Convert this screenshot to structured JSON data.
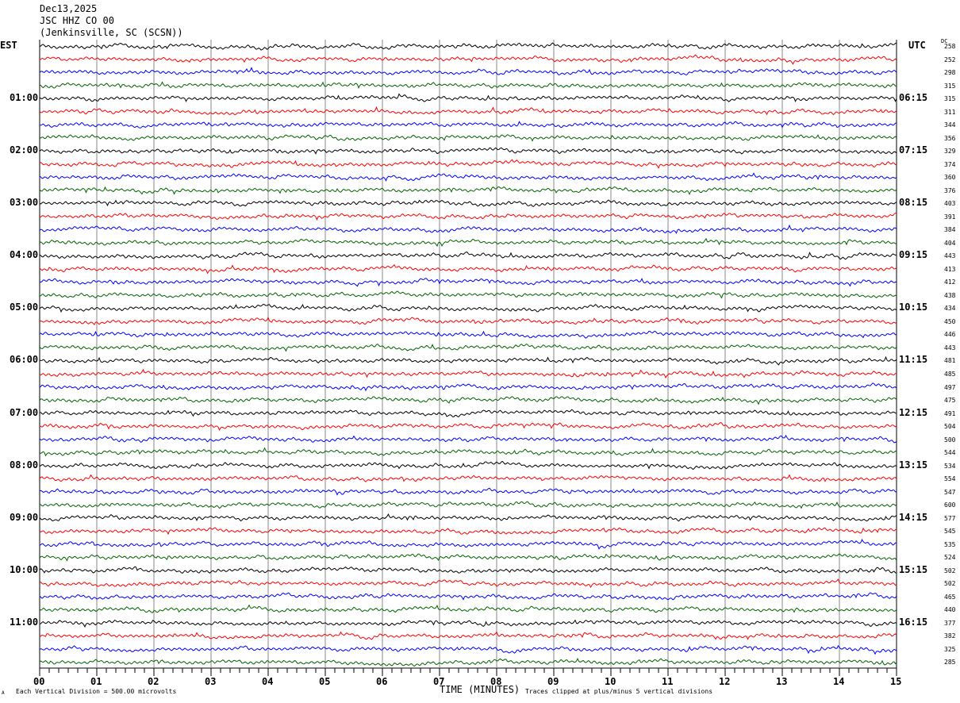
{
  "header": {
    "date": "Dec13,2025",
    "station": "JSC HHZ CO 00",
    "location": "(Jenkinsville, SC (SCSN))"
  },
  "left_axis_label": "EST",
  "right_axis_label": "UTC",
  "dc_label": "DC",
  "chart_data": {
    "type": "line",
    "title": "",
    "xlabel": "TIME (MINUTES)",
    "xlim": [
      0,
      15
    ],
    "x_ticks": [
      "00",
      "01",
      "02",
      "03",
      "04",
      "05",
      "06",
      "07",
      "08",
      "09",
      "10",
      "11",
      "12",
      "13",
      "14",
      "15"
    ],
    "left_time_labels": [
      "01:00",
      "02:00",
      "03:00",
      "04:00",
      "05:00",
      "06:00",
      "07:00",
      "08:00",
      "09:00",
      "10:00",
      "11:00"
    ],
    "right_time_labels": [
      "06:15",
      "07:15",
      "08:15",
      "09:15",
      "10:15",
      "11:15",
      "12:15",
      "13:15",
      "14:15",
      "15:15",
      "16:15"
    ],
    "trace_colors": [
      "#000000",
      "#ff0000",
      "#0000ff",
      "#006400"
    ],
    "trace_count": 48,
    "dc_offsets": [
      258,
      252,
      298,
      315,
      315,
      311,
      344,
      356,
      329,
      374,
      360,
      376,
      403,
      391,
      384,
      404,
      443,
      413,
      412,
      438,
      434,
      450,
      446,
      443,
      481,
      485,
      497,
      475,
      491,
      504,
      500,
      544,
      534,
      554,
      547,
      600,
      577,
      545,
      535,
      524,
      502,
      502,
      465,
      440,
      377,
      382,
      325,
      285
    ],
    "grid": true
  },
  "footer": {
    "scale_note": "Each Vertical Division =  500.00 microvolts",
    "clip_note": "Traces clipped at plus/minus 5 vertical divisions",
    "corner_mark": "A"
  }
}
